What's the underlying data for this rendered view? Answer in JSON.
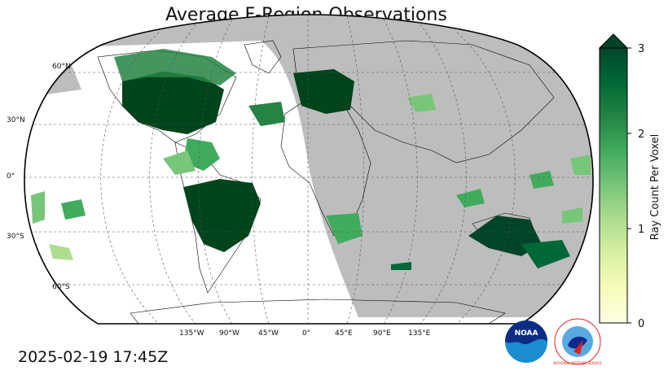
{
  "title": "Average F-Region Observations",
  "timestamp": "2025-02-19 17:45Z",
  "map": {
    "projection": "robinson",
    "lat_labels": [
      "60°N",
      "30°N",
      "0°",
      "30°S",
      "60°S"
    ],
    "lon_labels": [
      "135°W",
      "90°W",
      "45°W",
      "0°",
      "45°E",
      "90°E",
      "135°E"
    ],
    "night_color": "#bdbdbd",
    "coast_color": "#000000",
    "grid_color": "#555555"
  },
  "colorbar": {
    "label": "Ray Count Per Voxel",
    "ticks": [
      "0",
      "1",
      "2",
      "3"
    ],
    "min": 0,
    "max": 3,
    "extend": "max",
    "colormap": "YlGn",
    "colors": [
      "#ffffe5",
      "#f7fcb9",
      "#d9f0a3",
      "#addd8e",
      "#78c679",
      "#41ab5d",
      "#238443",
      "#006837",
      "#004529"
    ]
  },
  "logos": {
    "noaa": "NOAA",
    "nws": "NATIONAL WEATHER SERVICE"
  }
}
